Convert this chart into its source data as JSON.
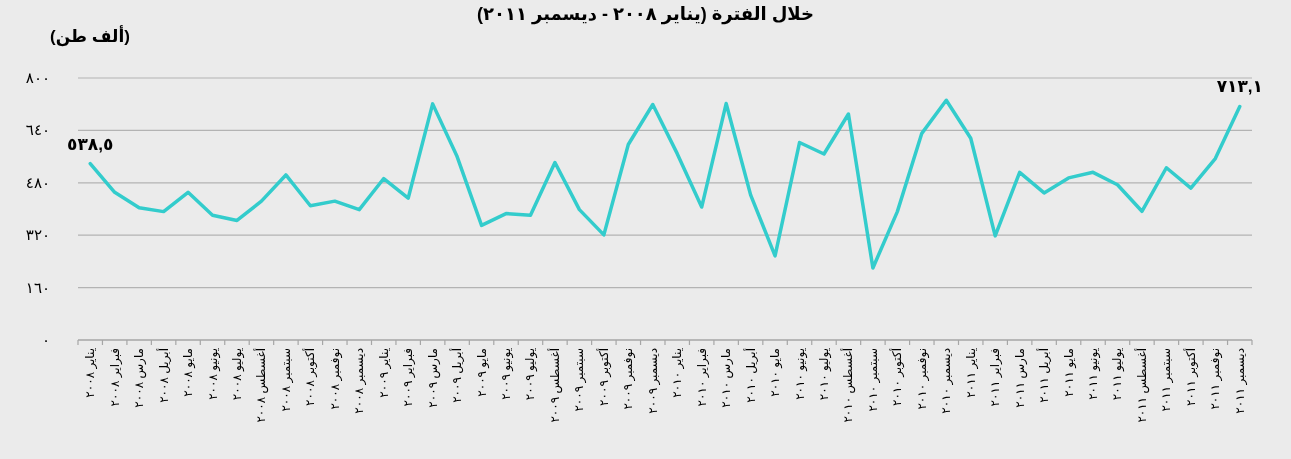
{
  "chart_data": {
    "type": "line",
    "title": "خلال الفترة (يناير ٢٠٠٨ - ديسمبر ٢٠١١)",
    "ylabel": "(ألف طن)",
    "categories": [
      "يناير ٢٠٠٨",
      "فبراير ٢٠٠٨",
      "مارس ٢٠٠٨",
      "أبريل ٢٠٠٨",
      "مايو ٢٠٠٨",
      "يونيو ٢٠٠٨",
      "يوليو ٢٠٠٨",
      "أغسطس ٢٠٠٨",
      "سبتمبر ٢٠٠٨",
      "أكتوبر ٢٠٠٨",
      "نوفمبر ٢٠٠٨",
      "ديسمبر ٢٠٠٨",
      "يناير ٢٠٠٩",
      "فبراير ٢٠٠٩",
      "مارس ٢٠٠٩",
      "أبريل ٢٠٠٩",
      "مايو ٢٠٠٩",
      "يونيو ٢٠٠٩",
      "يوليو ٢٠٠٩",
      "أغسطس ٢٠٠٩",
      "سبتمبر ٢٠٠٩",
      "أكتوبر ٢٠٠٩",
      "نوفمبر ٢٠٠٩",
      "ديسمبر ٢٠٠٩",
      "يناير ٢٠١٠",
      "فبراير ٢٠١٠",
      "مارس ٢٠١٠",
      "أبريل ٢٠١٠",
      "مايو ٢٠١٠",
      "يونيو ٢٠١٠",
      "يوليو ٢٠١٠",
      "أغسطس ٢٠١٠",
      "سبتمبر ٢٠١٠",
      "أكتوبر ٢٠١٠",
      "نوفمبر ٢٠١٠",
      "ديسمبر ٢٠١٠",
      "يناير ٢٠١١",
      "فبراير ٢٠١١",
      "مارس ٢٠١١",
      "أبريل ٢٠١١",
      "مايو ٢٠١١",
      "يونيو ٢٠١١",
      "يوليو ٢٠١١",
      "أغسطس ٢٠١١",
      "سبتمبر ٢٠١١",
      "أكتوبر ٢٠١١",
      "نوفمبر ٢٠١١",
      "ديسمبر ٢٠١١"
    ],
    "series": [
      {
        "color": "#33cccc",
        "values": [
          538.5,
          451,
          404,
          392,
          451,
          381,
          365,
          424,
          504,
          410,
          424,
          398,
          493,
          433,
          721,
          560,
          350,
          386,
          381,
          542,
          398,
          321,
          597,
          719,
          569,
          406,
          722,
          443,
          257,
          603,
          568,
          690,
          220,
          392,
          631,
          732,
          616,
          318,
          512,
          449,
          495,
          512,
          474,
          393,
          526,
          464,
          554,
          713.1
        ],
        "value_labels": [
          "٥٣٨,٥",
          null,
          null,
          null,
          null,
          null,
          null,
          null,
          null,
          null,
          null,
          null,
          null,
          null,
          null,
          null,
          null,
          null,
          null,
          null,
          null,
          null,
          null,
          null,
          null,
          null,
          null,
          null,
          null,
          null,
          null,
          null,
          null,
          null,
          null,
          null,
          null,
          null,
          null,
          null,
          null,
          null,
          null,
          null,
          null,
          null,
          null,
          "٧١٣,١"
        ]
      }
    ],
    "ylim": [
      0,
      800
    ],
    "yticks": [
      {
        "value": 0,
        "label": "٠"
      },
      {
        "value": 160,
        "label": "١٦٠"
      },
      {
        "value": 320,
        "label": "٣٢٠"
      },
      {
        "value": 480,
        "label": "٤٨٠"
      },
      {
        "value": 640,
        "label": "٦٤٠"
      },
      {
        "value": 800,
        "label": "٨٠٠"
      }
    ],
    "grid": "y"
  }
}
